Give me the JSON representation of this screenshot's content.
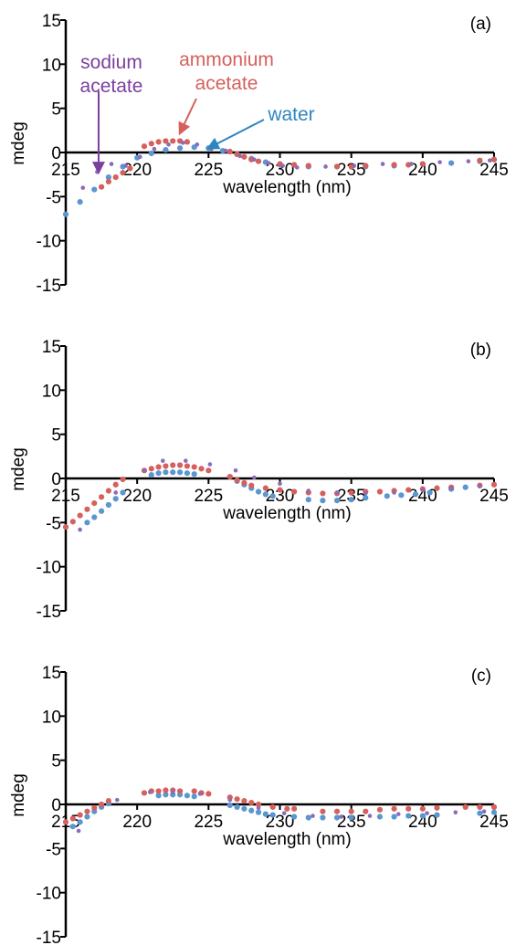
{
  "chart_data": [
    {
      "type": "scatter",
      "panel_label": "(a)",
      "xlabel": "wavelength (nm)",
      "ylabel": "mdeg",
      "xlim": [
        215,
        245
      ],
      "ylim": [
        -15,
        15
      ],
      "xticks": [
        215,
        220,
        225,
        230,
        235,
        240,
        245
      ],
      "yticks": [
        15,
        10,
        5,
        0,
        -5,
        -10,
        -15
      ],
      "annotations": [
        {
          "lines": [
            "sodium",
            "acetate"
          ],
          "color": "#7b3f9e",
          "target": [
            217.3,
            -2.2
          ]
        },
        {
          "lines": [
            "ammonium",
            "acetate"
          ],
          "color": "#d5605c",
          "target": [
            223.0,
            2.2
          ]
        },
        {
          "lines": [
            "water"
          ],
          "color": "#2e86c1",
          "target": [
            225.0,
            0.5
          ]
        }
      ],
      "series": [
        {
          "key": "water",
          "color": "#5a96d0",
          "x": [
            215,
            216,
            217,
            218,
            219,
            220,
            221,
            222,
            223,
            224,
            225,
            226,
            227,
            228,
            229,
            230,
            232,
            234,
            236,
            238,
            240,
            242,
            244,
            245
          ],
          "y": [
            -7.0,
            -5.6,
            -4.2,
            -2.8,
            -1.6,
            -0.6,
            -0.1,
            0.3,
            0.5,
            0.6,
            0.5,
            0.2,
            -0.2,
            -0.7,
            -1.1,
            -1.4,
            -1.6,
            -1.6,
            -1.6,
            -1.5,
            -1.3,
            -1.2,
            -1.0,
            -0.8
          ]
        },
        {
          "key": "ammonium acetate",
          "color": "#d5605c",
          "x": [
            217.5,
            218,
            218.5,
            219,
            219.5,
            220.5,
            221,
            221.5,
            222,
            222.5,
            223,
            223.5,
            226.5,
            227,
            227.5,
            228,
            228.5,
            230,
            231,
            232,
            234,
            235,
            236,
            238,
            239,
            240,
            244,
            245
          ],
          "y": [
            -3.9,
            -3.3,
            -2.8,
            -2.3,
            -1.8,
            0.7,
            1.0,
            1.2,
            1.3,
            1.3,
            1.3,
            1.2,
            0.1,
            -0.2,
            -0.5,
            -0.8,
            -1.0,
            -1.3,
            -1.4,
            -1.5,
            -1.6,
            -1.6,
            -1.5,
            -1.4,
            -1.4,
            -1.3,
            -0.9,
            -0.8
          ]
        },
        {
          "key": "sodium acetate",
          "color": "#8c6bb8",
          "x": [
            216.2,
            217.2,
            218.2,
            219.2,
            220.2,
            221.2,
            222.2,
            223.2,
            224.2,
            225.2,
            226.2,
            227.2,
            228.2,
            229.2,
            230.2,
            231.2,
            233.2,
            235.2,
            237.2,
            239.2,
            241.2,
            243.2,
            244.7
          ],
          "y": [
            -4.0,
            -2.2,
            -1.3,
            -1.5,
            -0.5,
            0.4,
            0.9,
            1.1,
            0.9,
            0.4,
            0.2,
            -0.4,
            -0.8,
            -1.2,
            -1.5,
            -1.7,
            -1.6,
            -1.5,
            -1.3,
            -1.3,
            -1.1,
            -1.0,
            -0.9
          ]
        }
      ]
    },
    {
      "type": "scatter",
      "panel_label": "(b)",
      "xlabel": "wavelength (nm)",
      "ylabel": "mdeg",
      "xlim": [
        215,
        245
      ],
      "ylim": [
        -15,
        15
      ],
      "xticks": [
        215,
        220,
        225,
        230,
        235,
        240,
        245
      ],
      "yticks": [
        15,
        10,
        5,
        0,
        -5,
        -10,
        -15
      ],
      "series": [
        {
          "key": "water",
          "color": "#5a96d0",
          "x": [
            216.5,
            217,
            217.5,
            218,
            218.5,
            219,
            221,
            221.5,
            222,
            222.5,
            223,
            223.5,
            224,
            227,
            227.5,
            228,
            228.5,
            229,
            229.5,
            232,
            233,
            234,
            235,
            236,
            237.5,
            238.5,
            239.5,
            240.5,
            242,
            243
          ],
          "y": [
            -5.0,
            -4.4,
            -3.7,
            -3.0,
            -2.3,
            -1.6,
            0.4,
            0.6,
            0.7,
            0.7,
            0.7,
            0.6,
            0.5,
            -0.3,
            -0.7,
            -1.1,
            -1.5,
            -1.8,
            -2.0,
            -2.4,
            -2.5,
            -2.5,
            -2.4,
            -2.2,
            -2.0,
            -1.9,
            -1.8,
            -1.6,
            -1.2,
            -1.0
          ]
        },
        {
          "key": "ammonium acetate",
          "color": "#d5605c",
          "x": [
            215,
            215.5,
            216,
            216.5,
            217,
            217.5,
            218,
            218.5,
            219,
            220.5,
            221,
            221.5,
            222,
            222.5,
            223,
            223.5,
            224,
            224.5,
            225,
            226.5,
            227,
            227.5,
            228,
            229,
            230,
            231,
            232,
            233,
            234,
            235,
            236,
            237,
            238,
            239,
            240,
            241,
            242,
            244,
            245
          ],
          "y": [
            -5.5,
            -4.9,
            -4.2,
            -3.5,
            -2.8,
            -2.1,
            -1.4,
            -0.7,
            -0.1,
            0.9,
            1.1,
            1.3,
            1.4,
            1.5,
            1.5,
            1.4,
            1.3,
            1.1,
            0.9,
            0.2,
            -0.2,
            -0.5,
            -0.8,
            -1.1,
            -1.3,
            -1.5,
            -1.6,
            -1.7,
            -1.7,
            -1.6,
            -1.5,
            -1.5,
            -1.4,
            -1.3,
            -1.2,
            -1.1,
            -1.0,
            -0.8,
            -0.7
          ]
        },
        {
          "key": "sodium acetate",
          "color": "#8c6bb8",
          "x": [
            216.0,
            218.5,
            220.5,
            221.8,
            223.4,
            225.1,
            226.9,
            228.2,
            230.0,
            232.0,
            234.0,
            236.0,
            238.0,
            240.0,
            242.0,
            244.0
          ],
          "y": [
            -5.8,
            -1.6,
            0.9,
            2.0,
            2.0,
            1.6,
            0.9,
            0.1,
            -0.6,
            -1.4,
            -1.6,
            -1.7,
            -1.6,
            -1.3,
            -1.1,
            -0.9
          ]
        }
      ]
    },
    {
      "type": "scatter",
      "panel_label": "(c)",
      "xlabel": "wavelength (nm)",
      "ylabel": "mdeg",
      "xlim": [
        215,
        245
      ],
      "ylim": [
        -15,
        15
      ],
      "xticks": [
        215,
        220,
        225,
        230,
        235,
        240,
        245
      ],
      "yticks": [
        15,
        10,
        5,
        0,
        -5,
        -10,
        -15
      ],
      "series": [
        {
          "key": "water",
          "color": "#5a96d0",
          "x": [
            215.5,
            216,
            216.5,
            217,
            217.5,
            218,
            221.5,
            222,
            222.5,
            223,
            223.5,
            224,
            226.5,
            227,
            227.5,
            228,
            228.5,
            229,
            229.5,
            231,
            232,
            233,
            234,
            235,
            237,
            238,
            239,
            240,
            241,
            244,
            245
          ],
          "y": [
            -2.5,
            -2.0,
            -1.4,
            -0.8,
            -0.3,
            0.1,
            1.0,
            1.1,
            1.1,
            1.1,
            1.0,
            0.9,
            -0.1,
            -0.3,
            -0.5,
            -0.7,
            -0.9,
            -1.1,
            -1.2,
            -1.4,
            -1.5,
            -1.5,
            -1.5,
            -1.5,
            -1.4,
            -1.4,
            -1.3,
            -1.3,
            -1.2,
            -1.0,
            -0.9
          ]
        },
        {
          "key": "ammonium acetate",
          "color": "#d5605c",
          "x": [
            215,
            215.5,
            216,
            216.5,
            217,
            217.5,
            218,
            220.5,
            221,
            221.5,
            222,
            222.5,
            223,
            224,
            224.5,
            225,
            226.5,
            227,
            227.5,
            228,
            228.5,
            229.5,
            230.5,
            231,
            233,
            234,
            235,
            236,
            237,
            238,
            239,
            240,
            241,
            243,
            244,
            245
          ],
          "y": [
            -2.0,
            -1.6,
            -1.2,
            -0.8,
            -0.4,
            0.0,
            0.4,
            1.3,
            1.5,
            1.5,
            1.6,
            1.6,
            1.5,
            1.5,
            1.3,
            1.2,
            0.8,
            0.6,
            0.4,
            0.2,
            0.0,
            -0.3,
            -0.5,
            -0.5,
            -0.8,
            -0.8,
            -0.8,
            -0.8,
            -0.6,
            -0.5,
            -0.5,
            -0.5,
            -0.4,
            -0.3,
            -0.3,
            -0.3
          ]
        },
        {
          "key": "sodium acetate",
          "color": "#8c6bb8",
          "x": [
            215.9,
            218.6,
            220.9,
            222.5,
            224.4,
            226.5,
            228.5,
            230.3,
            232.3,
            234.3,
            236.3,
            238.3,
            240.3,
            242.3,
            244.3
          ],
          "y": [
            -3.0,
            0.5,
            1.4,
            1.4,
            1.2,
            0.5,
            -0.4,
            -1.0,
            -1.3,
            -1.4,
            -1.3,
            -1.1,
            -1.0,
            -0.9,
            -0.8
          ]
        }
      ]
    }
  ]
}
